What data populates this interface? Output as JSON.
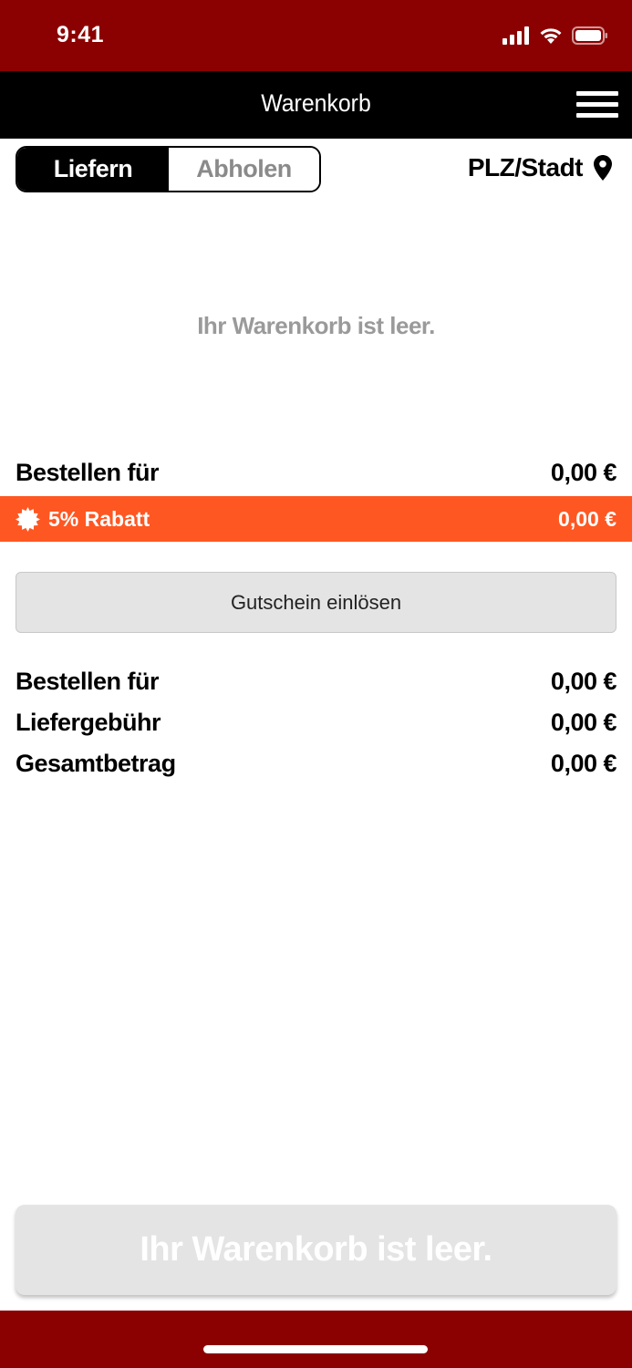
{
  "status_bar": {
    "time": "9:41",
    "icons": [
      "cellular-signal-icon",
      "wifi-icon",
      "battery-icon"
    ]
  },
  "nav": {
    "title": "Warenkorb",
    "menu_icon": "hamburger-menu-icon"
  },
  "delivery_mode": {
    "options": [
      "Liefern",
      "Abholen"
    ],
    "selected": "Liefern"
  },
  "location": {
    "label": "PLZ/Stadt",
    "icon": "map-pin-icon"
  },
  "cart": {
    "empty_message": "Ihr Warenkorb ist leer."
  },
  "subtotal_top": {
    "label": "Bestellen für",
    "value": "0,00 €"
  },
  "discount": {
    "icon": "discount-badge-icon",
    "label": "5% Rabatt",
    "value": "0,00 €"
  },
  "voucher_button": {
    "label": "Gutschein einlösen"
  },
  "summary": [
    {
      "label": "Bestellen für",
      "value": "0,00 €"
    },
    {
      "label": "Liefergebühr",
      "value": "0,00 €"
    },
    {
      "label": "Gesamtbetrag",
      "value": "0,00 €"
    }
  ],
  "checkout_button": {
    "label": "Ihr Warenkorb ist leer.",
    "disabled": true
  },
  "colors": {
    "brand_dark_red": "#8b0000",
    "nav_black": "#000000",
    "discount_orange": "#ff5722",
    "button_gray": "#e4e4e4",
    "muted_text": "#9a9a9a"
  }
}
